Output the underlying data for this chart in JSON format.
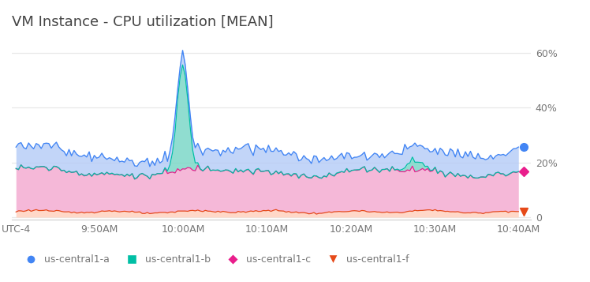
{
  "title": "VM Instance - CPU utilization [MEAN]",
  "title_fontsize": 13,
  "title_color": "#444444",
  "background_color": "#ffffff",
  "x_labels": [
    "UTC-4",
    "9:50AM",
    "10:00AM",
    "10:10AM",
    "10:20AM",
    "10:30AM",
    "10:40AM"
  ],
  "y_ticks": [
    0,
    20,
    40,
    60
  ],
  "y_labels": [
    "0",
    "20%",
    "40%",
    "60%"
  ],
  "ylim": [
    -1,
    66
  ],
  "legend_entries": [
    "us-central1-a",
    "us-central1-b",
    "us-central1-c",
    "us-central1-f"
  ],
  "legend_colors": [
    "#4285f4",
    "#00bfa5",
    "#e91e8c",
    "#e64a19"
  ],
  "series_a_fill": "#b8cef7",
  "series_a_line": "#4285f4",
  "series_b_fill": "#7dd8c8",
  "series_b_line": "#00bfa5",
  "series_c_fill": "#f5b8d8",
  "series_c_line": "#e91e8c",
  "series_f_fill": "#ffd8c8",
  "series_f_line": "#e64a19",
  "grid_color": "#e8e8e8",
  "axis_color": "#cccccc",
  "tick_label_color": "#777777"
}
